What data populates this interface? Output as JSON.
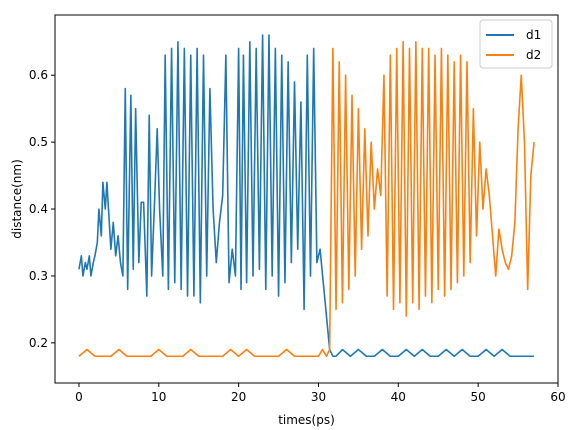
{
  "chart_data": {
    "type": "line",
    "title": "",
    "xlabel": "times(ps)",
    "ylabel": "distance(nm)",
    "xlim": [
      -3,
      60
    ],
    "ylim": [
      0.14,
      0.69
    ],
    "xticks": [
      "0",
      "10",
      "20",
      "30",
      "40",
      "50",
      "60"
    ],
    "yticks": [
      "0.2",
      "0.3",
      "0.4",
      "0.5",
      "0.6"
    ],
    "grid": false,
    "legend_position": "top-right",
    "series": [
      {
        "name": "d1",
        "color": "#1f77b4",
        "x": [
          0,
          0.3,
          0.5,
          0.8,
          1.0,
          1.3,
          1.5,
          1.8,
          2.0,
          2.3,
          2.5,
          2.8,
          3.0,
          3.3,
          3.5,
          3.8,
          4.0,
          4.3,
          4.6,
          4.9,
          5.2,
          5.5,
          5.8,
          6.1,
          6.5,
          6.8,
          7.1,
          7.5,
          7.8,
          8.1,
          8.5,
          8.8,
          9.1,
          9.5,
          9.8,
          10.1,
          10.5,
          10.8,
          11.2,
          11.6,
          12.0,
          12.4,
          12.8,
          13.2,
          13.6,
          14.0,
          14.4,
          14.8,
          15.2,
          15.6,
          16.0,
          16.4,
          16.8,
          17.2,
          17.6,
          18.0,
          18.4,
          18.8,
          19.2,
          19.6,
          20.0,
          20.3,
          20.6,
          21.0,
          21.4,
          21.8,
          22.2,
          22.6,
          23.0,
          23.4,
          23.8,
          24.2,
          24.6,
          25.0,
          25.4,
          25.8,
          26.2,
          26.6,
          27.0,
          27.4,
          27.8,
          28.2,
          28.6,
          29.0,
          29.4,
          29.8,
          30.2,
          30.6,
          31.0,
          31.4,
          31.8,
          32.2,
          33,
          34,
          35,
          36,
          37,
          38,
          39,
          40,
          41,
          42,
          43,
          44,
          45,
          46,
          47,
          48,
          49,
          50,
          51,
          52,
          53,
          54,
          55,
          56,
          57
        ],
        "y": [
          0.31,
          0.33,
          0.3,
          0.32,
          0.31,
          0.33,
          0.3,
          0.32,
          0.33,
          0.35,
          0.4,
          0.36,
          0.44,
          0.4,
          0.44,
          0.38,
          0.34,
          0.38,
          0.33,
          0.36,
          0.32,
          0.3,
          0.58,
          0.28,
          0.57,
          0.31,
          0.55,
          0.32,
          0.41,
          0.41,
          0.27,
          0.54,
          0.3,
          0.42,
          0.52,
          0.4,
          0.3,
          0.63,
          0.28,
          0.64,
          0.29,
          0.65,
          0.28,
          0.64,
          0.27,
          0.63,
          0.27,
          0.64,
          0.26,
          0.63,
          0.3,
          0.58,
          0.4,
          0.32,
          0.38,
          0.42,
          0.63,
          0.29,
          0.34,
          0.3,
          0.64,
          0.28,
          0.63,
          0.29,
          0.65,
          0.3,
          0.64,
          0.31,
          0.66,
          0.28,
          0.66,
          0.3,
          0.64,
          0.27,
          0.63,
          0.29,
          0.62,
          0.32,
          0.59,
          0.34,
          0.56,
          0.25,
          0.63,
          0.3,
          0.64,
          0.32,
          0.34,
          0.29,
          0.24,
          0.19,
          0.18,
          0.18,
          0.19,
          0.18,
          0.19,
          0.18,
          0.18,
          0.19,
          0.18,
          0.18,
          0.19,
          0.18,
          0.19,
          0.18,
          0.18,
          0.19,
          0.18,
          0.19,
          0.18,
          0.18,
          0.19,
          0.18,
          0.19,
          0.18,
          0.18,
          0.18,
          0.18
        ]
      },
      {
        "name": "d2",
        "color": "#ff7f0e",
        "x": [
          0,
          1,
          2,
          3,
          4,
          5,
          6,
          7,
          8,
          9,
          10,
          11,
          12,
          13,
          14,
          15,
          16,
          17,
          18,
          19,
          20,
          21,
          22,
          23,
          24,
          25,
          26,
          27,
          28,
          29,
          30,
          30.5,
          31,
          31.4,
          31.8,
          32.2,
          32.6,
          33.0,
          33.4,
          33.8,
          34.2,
          34.6,
          35.0,
          35.4,
          35.8,
          36.2,
          36.6,
          37.0,
          37.4,
          37.8,
          38.2,
          38.6,
          39.0,
          39.4,
          39.8,
          40.2,
          40.6,
          41.0,
          41.4,
          41.8,
          42.2,
          42.6,
          43.0,
          43.4,
          43.8,
          44.2,
          44.6,
          45.0,
          45.4,
          45.8,
          46.2,
          46.6,
          47.0,
          47.4,
          47.8,
          48.2,
          48.6,
          49.0,
          49.4,
          49.8,
          50.2,
          50.6,
          51.0,
          51.4,
          51.8,
          52.2,
          52.6,
          53.0,
          53.4,
          53.8,
          54.2,
          54.6,
          55.0,
          55.4,
          55.8,
          56.2,
          56.6,
          57.0
        ],
        "y": [
          0.18,
          0.19,
          0.18,
          0.18,
          0.18,
          0.19,
          0.18,
          0.18,
          0.18,
          0.18,
          0.19,
          0.18,
          0.18,
          0.18,
          0.19,
          0.18,
          0.18,
          0.18,
          0.18,
          0.19,
          0.18,
          0.19,
          0.18,
          0.18,
          0.18,
          0.18,
          0.19,
          0.18,
          0.18,
          0.18,
          0.18,
          0.19,
          0.18,
          0.19,
          0.64,
          0.25,
          0.62,
          0.26,
          0.6,
          0.28,
          0.57,
          0.3,
          0.55,
          0.34,
          0.52,
          0.36,
          0.5,
          0.4,
          0.46,
          0.42,
          0.6,
          0.27,
          0.63,
          0.25,
          0.64,
          0.26,
          0.65,
          0.24,
          0.64,
          0.26,
          0.65,
          0.25,
          0.64,
          0.27,
          0.64,
          0.26,
          0.63,
          0.28,
          0.64,
          0.27,
          0.63,
          0.28,
          0.62,
          0.29,
          0.63,
          0.3,
          0.62,
          0.32,
          0.55,
          0.36,
          0.5,
          0.4,
          0.46,
          0.42,
          0.36,
          0.3,
          0.37,
          0.34,
          0.32,
          0.31,
          0.33,
          0.38,
          0.52,
          0.6,
          0.5,
          0.28,
          0.45,
          0.5
        ]
      }
    ]
  }
}
